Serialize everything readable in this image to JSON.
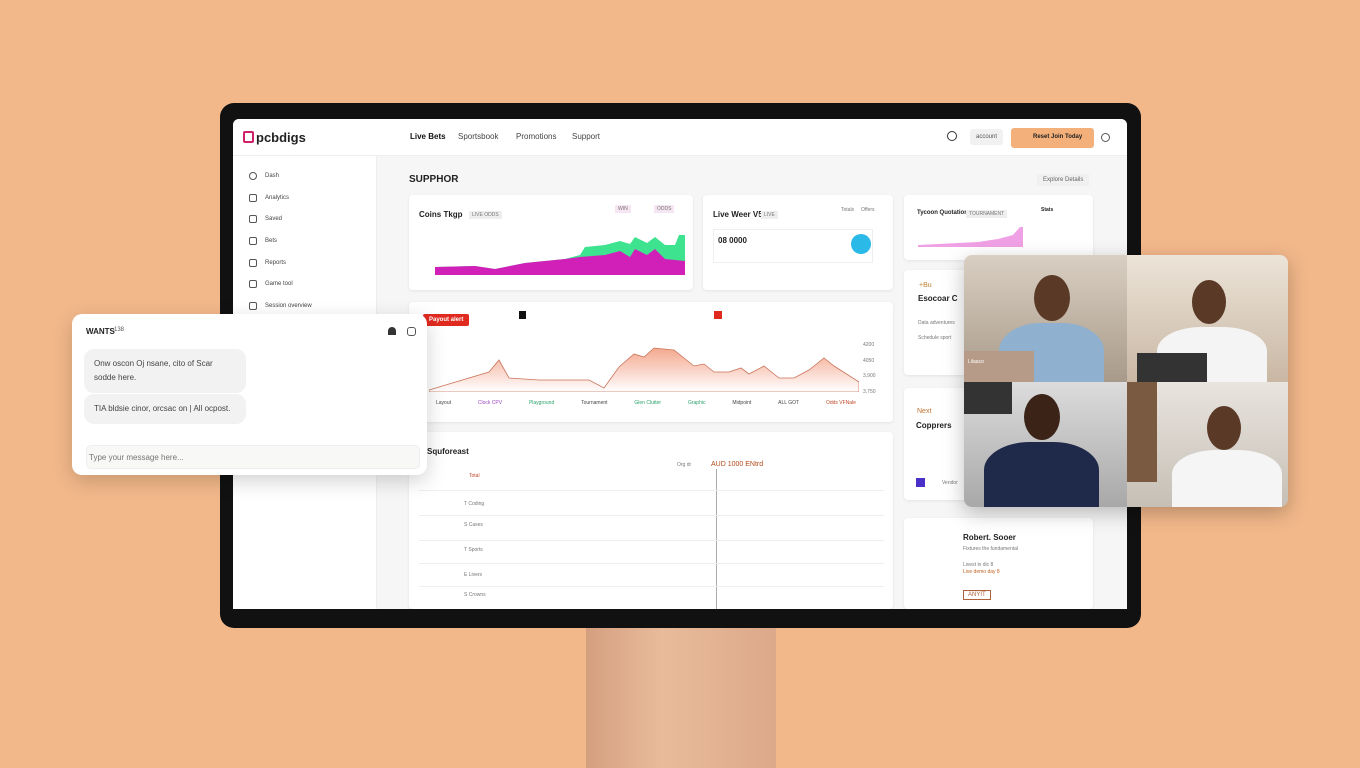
{
  "app": {
    "logo": "pcbdigs"
  },
  "nav": [
    "Live Bets",
    "Sportsbook",
    "Promotions",
    "Support"
  ],
  "header": {
    "account": "account",
    "cta": "Reset Join Today",
    "search_icon": "search-icon",
    "clock_icon": "clock-icon"
  },
  "sidebar": {
    "items": [
      {
        "label": "Dash",
        "icon": "circle-icon"
      },
      {
        "label": "Analytics",
        "icon": "building-icon"
      },
      {
        "label": "Saved",
        "icon": "hand-icon"
      },
      {
        "label": "Bets",
        "icon": "ticket-icon"
      },
      {
        "label": "Reports",
        "icon": "doc-icon"
      },
      {
        "label": "Game tool",
        "icon": "stack-icon"
      },
      {
        "label": "Session overview",
        "icon": "box-icon"
      }
    ]
  },
  "main": {
    "title": "SUPPHOR",
    "filter": "Explore Details",
    "card1": {
      "title": "Coins Tkgp",
      "chip": "LIVE ODDS",
      "tags": [
        "WIN",
        "ODDS"
      ]
    },
    "card2": {
      "title": "Live Weer V5",
      "chip": "LIVE",
      "value": "08 0000",
      "tags": [
        "Totals",
        "Offers"
      ]
    },
    "card3": {
      "title": "Tycoon Quotation",
      "chip": "TOURNAMENT",
      "side": "Stats"
    },
    "card4": {
      "badge": "Payout alert",
      "axis": [
        "4200",
        "4050",
        "3,900",
        "3,750"
      ],
      "labels": [
        "Layout",
        "Clock CPV",
        "Playground",
        "Tournament",
        "Glen Clutter",
        "Graphic",
        "Midpoint",
        "ALL GOT",
        "Odds VFNale"
      ],
      "colors": [
        "#444",
        "#9a4ac0",
        "#2aa36a",
        "#444",
        "#2aa36a",
        "#2aa36a",
        "#444",
        "#444",
        "#c0492a"
      ]
    },
    "card5": {
      "title": "Squforeast",
      "header_left": "Total",
      "header_mid": "Org dr",
      "header_right": "AUD 1000 ENtrd",
      "rows": [
        "T Coding",
        "S Cases",
        "T Sports",
        "E Livers",
        "S Crowns"
      ]
    },
    "right1": {
      "kicker": "+Bu",
      "title": "Esocoar C",
      "lines": [
        "Data adventures",
        "Schedule sport"
      ]
    },
    "right2": {
      "kicker": "Next",
      "title": "Copprers",
      "mini": "Vendor"
    },
    "right3": {
      "title": "Robert. Sooer",
      "sub": "Fixtures the fundamental",
      "l1": "Livest in dic 8",
      "l2": "Live demo day 8",
      "button": "ANYIT"
    }
  },
  "chat": {
    "title": "WANTS",
    "count": "138",
    "messages": [
      "Onw oscon Oj nsane, cito of Scar sodde here.",
      "TIA bldsie cinor, orcsac on | All ocpost."
    ],
    "placeholder": "Type your message here..."
  },
  "video": {
    "participants": 4,
    "tile_caption": "Lilaaco"
  }
}
